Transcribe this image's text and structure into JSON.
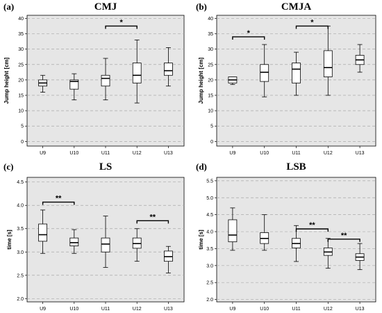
{
  "chart_data": [
    {
      "panel": "(a)",
      "title": "CMJ",
      "type": "boxplot",
      "ylabel": "Jump height [cm]",
      "ylim": [
        -1.5,
        41
      ],
      "yticks": [
        0,
        5,
        10,
        15,
        20,
        25,
        30,
        35,
        40
      ],
      "categories": [
        "U9",
        "U10",
        "U11",
        "U12",
        "U13"
      ],
      "boxes": [
        {
          "min": 16,
          "q1": 18,
          "median": 19,
          "q3": 20,
          "max": 21.5
        },
        {
          "min": 13.5,
          "q1": 17,
          "median": 19.5,
          "q3": 20,
          "max": 22
        },
        {
          "min": 13.5,
          "q1": 18,
          "median": 20.5,
          "q3": 21.5,
          "max": 27
        },
        {
          "min": 12.5,
          "q1": 19,
          "median": 21.5,
          "q3": 25.5,
          "max": 33
        },
        {
          "min": 18,
          "q1": 21.5,
          "median": 23,
          "q3": 25.5,
          "max": 30.5
        }
      ],
      "significance": [
        {
          "from": 2,
          "to": 3,
          "label": "*",
          "y": 37.5
        }
      ]
    },
    {
      "panel": "(b)",
      "title": "CMJA",
      "type": "boxplot",
      "ylabel": "Jump height [cm]",
      "ylim": [
        -1.5,
        41
      ],
      "yticks": [
        0,
        5,
        10,
        15,
        20,
        25,
        30,
        35,
        40
      ],
      "categories": [
        "U9",
        "U10",
        "U11",
        "U12",
        "U13"
      ],
      "boxes": [
        {
          "min": 18.5,
          "q1": 19,
          "median": 20,
          "q3": 21,
          "max": 21
        },
        {
          "min": 14.5,
          "q1": 19.5,
          "median": 22.5,
          "q3": 25,
          "max": 31.5
        },
        {
          "min": 15,
          "q1": 19,
          "median": 23.5,
          "q3": 25.5,
          "max": 29
        },
        {
          "min": 15,
          "q1": 21,
          "median": 24,
          "q3": 29.5,
          "max": 37.5
        },
        {
          "min": 22.5,
          "q1": 25,
          "median": 26.5,
          "q3": 28,
          "max": 31.5
        }
      ],
      "significance": [
        {
          "from": 0,
          "to": 1,
          "label": "*",
          "y": 34
        },
        {
          "from": 2,
          "to": 3,
          "label": "*",
          "y": 37.5
        }
      ]
    },
    {
      "panel": "(c)",
      "title": "LS",
      "type": "boxplot",
      "ylabel": "time [s]",
      "ylim": [
        1.93,
        4.6
      ],
      "yticks": [
        2.0,
        2.5,
        3.0,
        3.5,
        4.0,
        4.5
      ],
      "categories": [
        "U9",
        "U10",
        "U11",
        "U12",
        "U13"
      ],
      "boxes": [
        {
          "min": 2.97,
          "q1": 3.23,
          "median": 3.37,
          "q3": 3.6,
          "max": 3.9
        },
        {
          "min": 2.97,
          "q1": 3.13,
          "median": 3.2,
          "q3": 3.3,
          "max": 3.48
        },
        {
          "min": 2.67,
          "q1": 3.0,
          "median": 3.17,
          "q3": 3.3,
          "max": 3.77
        },
        {
          "min": 2.8,
          "q1": 3.08,
          "median": 3.18,
          "q3": 3.3,
          "max": 3.5
        },
        {
          "min": 2.55,
          "q1": 2.8,
          "median": 2.9,
          "q3": 3.02,
          "max": 3.12
        }
      ],
      "significance": [
        {
          "from": 0,
          "to": 1,
          "label": "**",
          "y": 4.07
        },
        {
          "from": 3,
          "to": 4,
          "label": "**",
          "y": 3.67
        }
      ]
    },
    {
      "panel": "(d)",
      "title": "LSB",
      "type": "boxplot",
      "ylabel": "time [s]",
      "ylim": [
        1.93,
        5.6
      ],
      "yticks": [
        2.0,
        2.5,
        3.0,
        3.5,
        4.0,
        4.5,
        5.0,
        5.5
      ],
      "categories": [
        "U9",
        "U10",
        "U11",
        "U12",
        "U13"
      ],
      "boxes": [
        {
          "min": 3.45,
          "q1": 3.7,
          "median": 3.9,
          "q3": 4.35,
          "max": 4.7
        },
        {
          "min": 3.45,
          "q1": 3.65,
          "median": 3.8,
          "q3": 3.97,
          "max": 4.5
        },
        {
          "min": 3.12,
          "q1": 3.52,
          "median": 3.65,
          "q3": 3.8,
          "max": 4.18
        },
        {
          "min": 2.92,
          "q1": 3.3,
          "median": 3.4,
          "q3": 3.52,
          "max": 3.8
        },
        {
          "min": 2.88,
          "q1": 3.15,
          "median": 3.25,
          "q3": 3.35,
          "max": 3.65
        }
      ],
      "significance": [
        {
          "from": 2,
          "to": 3,
          "label": "**",
          "y": 4.08
        },
        {
          "from": 3,
          "to": 4,
          "label": "**",
          "y": 3.78
        }
      ]
    }
  ],
  "colors": {
    "panel_bg": "#e6e6e6",
    "gridline": "#aaaaaa",
    "box_fill": "#ffffff",
    "stroke": "#000000"
  }
}
